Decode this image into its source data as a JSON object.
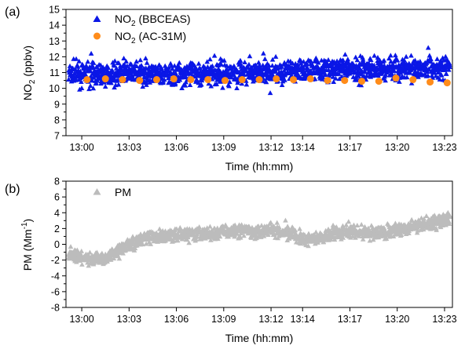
{
  "chart_data": [
    {
      "panel_label": "(a)",
      "type": "scatter",
      "xlabel": "Time (hh:mm)",
      "ylabel": {
        "prefix": "NO",
        "sub": "2",
        "suffix": " (ppbv)"
      },
      "xlim": [
        "12:59:00",
        "13:23:30"
      ],
      "ylim": [
        7,
        15
      ],
      "x_ticks": [
        "13:00",
        "13:03",
        "13:06",
        "13:09",
        "13:12",
        "13:14",
        "13:17",
        "13:20",
        "13:23"
      ],
      "y_ticks": [
        7,
        8,
        9,
        10,
        11,
        12,
        13,
        14,
        15
      ],
      "legend_position": "top-left",
      "series": [
        {
          "name": {
            "prefix": "NO",
            "sub": "2",
            "suffix": " (BBCEAS)"
          },
          "marker": "triangle",
          "color": "#0a17e6",
          "description": "dense 1-s measurements, mean ~10.9 ppbv at start rising to ~11.3 ppbv at end, spread about +/-0.7 ppbv",
          "trend": [
            {
              "t": "13:00",
              "y": 10.9
            },
            {
              "t": "13:06",
              "y": 10.9
            },
            {
              "t": "13:12",
              "y": 11.0
            },
            {
              "t": "13:15",
              "y": 11.2
            },
            {
              "t": "13:23",
              "y": 11.3
            }
          ],
          "spread": 0.7
        },
        {
          "name": {
            "prefix": "NO",
            "sub": "2",
            "suffix": " (AC-31M)"
          },
          "marker": "circle",
          "color": "#ff8c1a",
          "points": [
            {
              "t": "13:00:20",
              "y": 10.55
            },
            {
              "t": "13:01:30",
              "y": 10.6
            },
            {
              "t": "13:02:35",
              "y": 10.55
            },
            {
              "t": "13:03:40",
              "y": 10.5
            },
            {
              "t": "13:04:45",
              "y": 10.55
            },
            {
              "t": "13:05:50",
              "y": 10.6
            },
            {
              "t": "13:06:55",
              "y": 10.55
            },
            {
              "t": "13:08:00",
              "y": 10.55
            },
            {
              "t": "13:09:05",
              "y": 10.5
            },
            {
              "t": "13:10:10",
              "y": 10.55
            },
            {
              "t": "13:11:15",
              "y": 10.55
            },
            {
              "t": "13:12:20",
              "y": 10.6
            },
            {
              "t": "13:13:25",
              "y": 10.55
            },
            {
              "t": "13:14:30",
              "y": 10.6
            },
            {
              "t": "13:15:35",
              "y": 10.5
            },
            {
              "t": "13:16:40",
              "y": 10.5
            },
            {
              "t": "13:17:45",
              "y": 10.45
            },
            {
              "t": "13:18:50",
              "y": 10.45
            },
            {
              "t": "13:19:55",
              "y": 10.65
            },
            {
              "t": "13:21:00",
              "y": 10.55
            },
            {
              "t": "13:22:05",
              "y": 10.4
            },
            {
              "t": "13:23:10",
              "y": 10.35
            }
          ]
        }
      ]
    },
    {
      "panel_label": "(b)",
      "type": "scatter",
      "xlabel": "Time (hh:mm)",
      "ylabel": {
        "prefix": "PM (Mm",
        "sup": "-1",
        "suffix": ")"
      },
      "xlim": [
        "12:59:00",
        "13:23:30"
      ],
      "ylim": [
        -8,
        8
      ],
      "x_ticks": [
        "13:00",
        "13:03",
        "13:06",
        "13:09",
        "13:12",
        "13:14",
        "13:17",
        "13:20",
        "13:23"
      ],
      "y_ticks": [
        -8,
        -6,
        -4,
        -2,
        0,
        2,
        4,
        6,
        8
      ],
      "legend_position": "top-left",
      "series": [
        {
          "name": "PM",
          "marker": "triangle",
          "color": "#bcbcbc",
          "description": "dense 1-s measurements near zero, dipping to about -2 around 13:00-13:02 and rising to about 3 Mm-1 by 13:23",
          "trend": [
            {
              "t": "12:59:00",
              "y": -1.0
            },
            {
              "t": "13:00:00",
              "y": -1.8
            },
            {
              "t": "13:01:30",
              "y": -1.8
            },
            {
              "t": "13:02:00",
              "y": -1.0
            },
            {
              "t": "13:03:00",
              "y": 0.0
            },
            {
              "t": "13:04:00",
              "y": 0.8
            },
            {
              "t": "13:06:00",
              "y": 1.2
            },
            {
              "t": "13:08:00",
              "y": 1.3
            },
            {
              "t": "13:09:00",
              "y": 1.6
            },
            {
              "t": "13:10:00",
              "y": 1.8
            },
            {
              "t": "13:11:00",
              "y": 1.6
            },
            {
              "t": "13:12:00",
              "y": 2.0
            },
            {
              "t": "13:13:00",
              "y": 1.5
            },
            {
              "t": "13:14:00",
              "y": 0.5
            },
            {
              "t": "13:15:00",
              "y": 0.8
            },
            {
              "t": "13:16:00",
              "y": 1.5
            },
            {
              "t": "13:17:00",
              "y": 1.6
            },
            {
              "t": "13:18:00",
              "y": 1.5
            },
            {
              "t": "13:19:00",
              "y": 1.4
            },
            {
              "t": "13:20:00",
              "y": 1.8
            },
            {
              "t": "13:21:00",
              "y": 2.3
            },
            {
              "t": "13:22:00",
              "y": 2.6
            },
            {
              "t": "13:23:30",
              "y": 3.2
            }
          ],
          "spread": 0.8
        }
      ]
    }
  ]
}
